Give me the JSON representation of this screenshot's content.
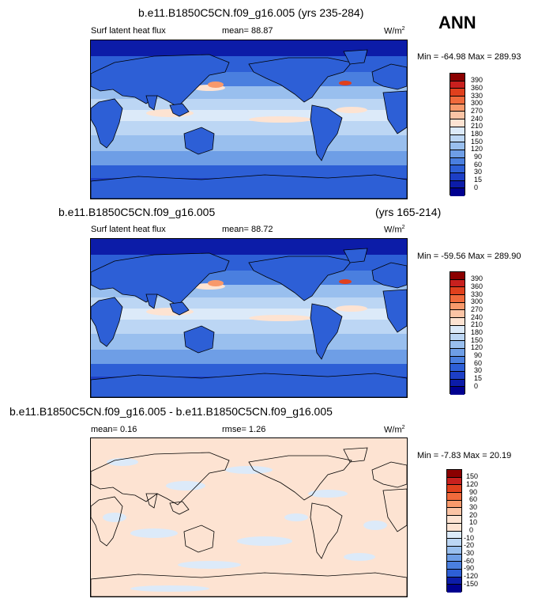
{
  "season": "ANN",
  "coastline_color": "#000000",
  "panels": [
    {
      "id": "top",
      "title": "b.e11.B1850C5CN.f09_g16.005 (yrs 235-284)",
      "title_right": "",
      "left_label": "Surf latent heat flux",
      "middle_label": "mean=  88.87",
      "units": "W/m",
      "units_sup": "2",
      "minmax": "Min = -64.98 Max = 289.93",
      "field": "model",
      "colorbar": {
        "colors": [
          "#8b0000",
          "#c8201e",
          "#e0401d",
          "#f06a3c",
          "#f8996b",
          "#fbc4a5",
          "#fde3d2",
          "#dceaf9",
          "#bcd6f4",
          "#99bfee",
          "#6e9ee6",
          "#4a7fdf",
          "#2d5fd6",
          "#1d3fc6",
          "#0c1ca8",
          "#000090"
        ],
        "labels": [
          "390",
          "360",
          "330",
          "300",
          "270",
          "240",
          "210",
          "180",
          "150",
          "120",
          "90",
          "60",
          "30",
          "15",
          "0"
        ]
      }
    },
    {
      "id": "middle",
      "title": "b.e11.B1850C5CN.f09_g16.005",
      "title_right": "(yrs 165-214)",
      "left_label": "Surf latent heat flux",
      "middle_label": "mean=  88.72",
      "units": "W/m",
      "units_sup": "2",
      "minmax": "Min = -59.56 Max = 289.90",
      "field": "model",
      "colorbar": {
        "colors": [
          "#8b0000",
          "#c8201e",
          "#e0401d",
          "#f06a3c",
          "#f8996b",
          "#fbc4a5",
          "#fde3d2",
          "#dceaf9",
          "#bcd6f4",
          "#99bfee",
          "#6e9ee6",
          "#4a7fdf",
          "#2d5fd6",
          "#1d3fc6",
          "#0c1ca8",
          "#000090"
        ],
        "labels": [
          "390",
          "360",
          "330",
          "300",
          "270",
          "240",
          "210",
          "180",
          "150",
          "120",
          "90",
          "60",
          "30",
          "15",
          "0"
        ]
      }
    },
    {
      "id": "bottom",
      "title": "b.e11.B1850C5CN.f09_g16.005 - b.e11.B1850C5CN.f09_g16.005",
      "title_right": "",
      "left_label": "mean=  0.16",
      "middle_label": "rmse=  1.26",
      "units": "W/m",
      "units_sup": "2",
      "minmax": "Min = -7.83 Max = 20.19",
      "field": "diff",
      "colorbar": {
        "colors": [
          "#8b0000",
          "#c8201e",
          "#e0401d",
          "#f06a3c",
          "#f8996b",
          "#fbc4a5",
          "#fde3d2",
          "#fde3d2",
          "#dceaf9",
          "#bcd6f4",
          "#99bfee",
          "#6e9ee6",
          "#4a7fdf",
          "#2d5fd6",
          "#0c1ca8",
          "#000090"
        ],
        "labels": [
          "150",
          "120",
          "90",
          "60",
          "30",
          "20",
          "10",
          "0",
          "-10",
          "-20",
          "-30",
          "-60",
          "-90",
          "-120",
          "-150"
        ]
      }
    }
  ]
}
